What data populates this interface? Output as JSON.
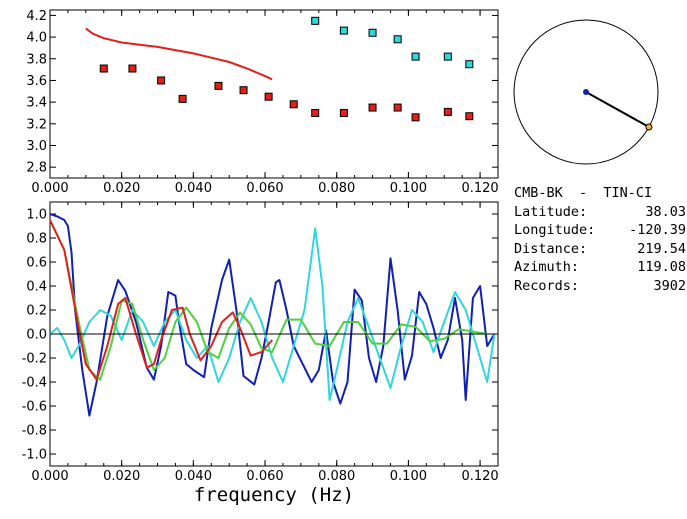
{
  "colors": {
    "red": "#e0201a",
    "cyan": "#2fd6dc",
    "blue": "#1020b0",
    "green": "#4fd040",
    "axis": "#000000"
  },
  "info": {
    "station": "CMB-BK  -  TIN-CI",
    "rows": [
      {
        "label": "Latitude:",
        "value": "38.03"
      },
      {
        "label": "Longitude:",
        "value": "-120.39"
      },
      {
        "label": "Distance:",
        "value": "219.54"
      },
      {
        "label": "Azimuth:",
        "value": "119.08"
      },
      {
        "label": "Records:",
        "value": "3902"
      }
    ]
  },
  "chart_data": [
    {
      "type": "scatter",
      "title": "",
      "xlabel": "",
      "ylabel": "",
      "xlim": [
        0.0,
        0.125
      ],
      "ylim": [
        2.7,
        4.25
      ],
      "x_ticks": [
        "0.000",
        "0.020",
        "0.040",
        "0.060",
        "0.080",
        "0.100",
        "0.120"
      ],
      "y_ticks": [
        "2.8",
        "3.0",
        "3.2",
        "3.4",
        "3.6",
        "3.8",
        "4.0",
        "4.2"
      ],
      "series": [
        {
          "color": "red",
          "kind": "markers",
          "x": [
            0.015,
            0.023,
            0.031,
            0.037,
            0.047,
            0.054,
            0.061,
            0.068,
            0.074,
            0.082,
            0.09,
            0.097,
            0.102,
            0.111,
            0.117
          ],
          "y": [
            3.71,
            3.71,
            3.6,
            3.43,
            3.55,
            3.51,
            3.45,
            3.38,
            3.3,
            3.3,
            3.35,
            3.35,
            3.26,
            3.31,
            3.27
          ]
        },
        {
          "color": "cyan",
          "kind": "markers",
          "x": [
            0.074,
            0.082,
            0.09,
            0.097,
            0.102,
            0.111,
            0.117
          ],
          "y": [
            4.15,
            4.06,
            4.04,
            3.98,
            3.82,
            3.82,
            3.75
          ]
        },
        {
          "color": "red",
          "kind": "line",
          "x": [
            0.01,
            0.012,
            0.015,
            0.02,
            0.025,
            0.03,
            0.035,
            0.04,
            0.045,
            0.05,
            0.055,
            0.06,
            0.062
          ],
          "y": [
            4.08,
            4.03,
            3.99,
            3.95,
            3.93,
            3.91,
            3.88,
            3.85,
            3.81,
            3.77,
            3.71,
            3.64,
            3.61
          ]
        }
      ]
    },
    {
      "type": "line",
      "title": "",
      "xlabel": "frequency (Hz)",
      "ylabel": "",
      "xlim": [
        0.0,
        0.125
      ],
      "ylim": [
        -1.1,
        1.1
      ],
      "x_ticks": [
        "0.000",
        "0.020",
        "0.040",
        "0.060",
        "0.080",
        "0.100",
        "0.120"
      ],
      "y_ticks": [
        "1.0",
        "0.8",
        "0.6",
        "0.4",
        "0.2",
        "0.0",
        "-0.2",
        "-0.4",
        "-0.6",
        "-0.8",
        "-1.0"
      ],
      "series": [
        {
          "color": "blue",
          "x": [
            0.0,
            0.002,
            0.004,
            0.005,
            0.006,
            0.007,
            0.009,
            0.011,
            0.013,
            0.016,
            0.019,
            0.021,
            0.024,
            0.027,
            0.029,
            0.031,
            0.033,
            0.035,
            0.036,
            0.038,
            0.04,
            0.043,
            0.045,
            0.048,
            0.05,
            0.052,
            0.054,
            0.057,
            0.059,
            0.061,
            0.063,
            0.064,
            0.066,
            0.068,
            0.07,
            0.073,
            0.075,
            0.077,
            0.079,
            0.081,
            0.083,
            0.085,
            0.087,
            0.089,
            0.091,
            0.093,
            0.095,
            0.097,
            0.099,
            0.101,
            0.103,
            0.105,
            0.107,
            0.109,
            0.111,
            0.113,
            0.115,
            0.116,
            0.118,
            0.12,
            0.122,
            0.124
          ],
          "y": [
            1.0,
            0.98,
            0.95,
            0.9,
            0.68,
            0.2,
            -0.3,
            -0.68,
            -0.4,
            0.15,
            0.45,
            0.36,
            0.1,
            -0.28,
            -0.38,
            -0.1,
            0.35,
            0.32,
            0.1,
            -0.25,
            -0.3,
            -0.36,
            0.05,
            0.45,
            0.62,
            0.2,
            -0.35,
            -0.42,
            -0.2,
            0.1,
            0.43,
            0.45,
            0.2,
            -0.1,
            -0.22,
            -0.4,
            -0.3,
            0.03,
            -0.4,
            -0.58,
            -0.4,
            0.37,
            0.28,
            -0.2,
            -0.4,
            -0.1,
            0.63,
            0.2,
            -0.38,
            -0.18,
            0.35,
            0.25,
            0.05,
            -0.2,
            -0.05,
            0.3,
            -0.05,
            -0.55,
            0.3,
            0.4,
            -0.1,
            0.0
          ]
        },
        {
          "color": "cyan",
          "x": [
            0.0,
            0.002,
            0.004,
            0.006,
            0.008,
            0.011,
            0.014,
            0.017,
            0.02,
            0.023,
            0.026,
            0.029,
            0.032,
            0.035,
            0.038,
            0.041,
            0.044,
            0.047,
            0.05,
            0.053,
            0.056,
            0.059,
            0.062,
            0.065,
            0.068,
            0.071,
            0.074,
            0.076,
            0.078,
            0.08,
            0.083,
            0.086,
            0.089,
            0.092,
            0.095,
            0.098,
            0.101,
            0.104,
            0.107,
            0.11,
            0.113,
            0.116,
            0.119,
            0.122,
            0.124
          ],
          "y": [
            0.0,
            0.05,
            -0.05,
            -0.2,
            -0.1,
            0.1,
            0.2,
            0.15,
            -0.05,
            0.2,
            0.1,
            -0.1,
            0.1,
            0.2,
            -0.05,
            -0.2,
            -0.1,
            -0.4,
            -0.2,
            0.1,
            0.3,
            0.1,
            -0.2,
            -0.4,
            -0.1,
            0.2,
            0.88,
            0.4,
            -0.55,
            -0.3,
            0.1,
            0.3,
            0.05,
            -0.2,
            -0.45,
            -0.1,
            0.2,
            0.1,
            -0.15,
            0.1,
            0.35,
            0.2,
            -0.1,
            -0.4,
            0.0
          ]
        },
        {
          "color": "green",
          "x": [
            0.0,
            0.004,
            0.008,
            0.011,
            0.014,
            0.017,
            0.02,
            0.023,
            0.026,
            0.029,
            0.032,
            0.035,
            0.038,
            0.041,
            0.044,
            0.047,
            0.05,
            0.053,
            0.056,
            0.059,
            0.062,
            0.066,
            0.07,
            0.074,
            0.078,
            0.082,
            0.086,
            0.09,
            0.094,
            0.098,
            0.102,
            0.106,
            0.11,
            0.114,
            0.118,
            0.122
          ],
          "y": [
            0.95,
            0.7,
            0.1,
            -0.3,
            -0.38,
            -0.1,
            0.28,
            0.25,
            -0.05,
            -0.3,
            -0.2,
            0.1,
            0.22,
            0.1,
            -0.15,
            -0.2,
            0.05,
            0.18,
            0.08,
            -0.12,
            -0.15,
            0.12,
            0.12,
            -0.08,
            -0.1,
            0.1,
            0.1,
            -0.08,
            -0.08,
            0.08,
            0.06,
            -0.06,
            -0.04,
            0.04,
            0.02,
            0.0
          ]
        },
        {
          "color": "red",
          "x": [
            0.0,
            0.004,
            0.008,
            0.01,
            0.013,
            0.016,
            0.019,
            0.021,
            0.024,
            0.027,
            0.029,
            0.031,
            0.034,
            0.037,
            0.039,
            0.042,
            0.045,
            0.048,
            0.051,
            0.053,
            0.056,
            0.059,
            0.062
          ],
          "y": [
            0.95,
            0.7,
            0.05,
            -0.25,
            -0.38,
            -0.1,
            0.25,
            0.3,
            0.0,
            -0.28,
            -0.25,
            -0.05,
            0.2,
            0.22,
            0.0,
            -0.22,
            -0.1,
            0.1,
            0.18,
            0.05,
            -0.18,
            -0.15,
            -0.05
          ]
        },
        {
          "color": "black",
          "kind": "zero-line",
          "x": [
            0.0,
            0.125
          ],
          "y": [
            0.0,
            0.0
          ]
        }
      ]
    },
    {
      "type": "polar",
      "azimuth_deg": 119.08,
      "colors": {
        "line": "black",
        "center": "blue",
        "endpoint": "orange"
      }
    }
  ]
}
